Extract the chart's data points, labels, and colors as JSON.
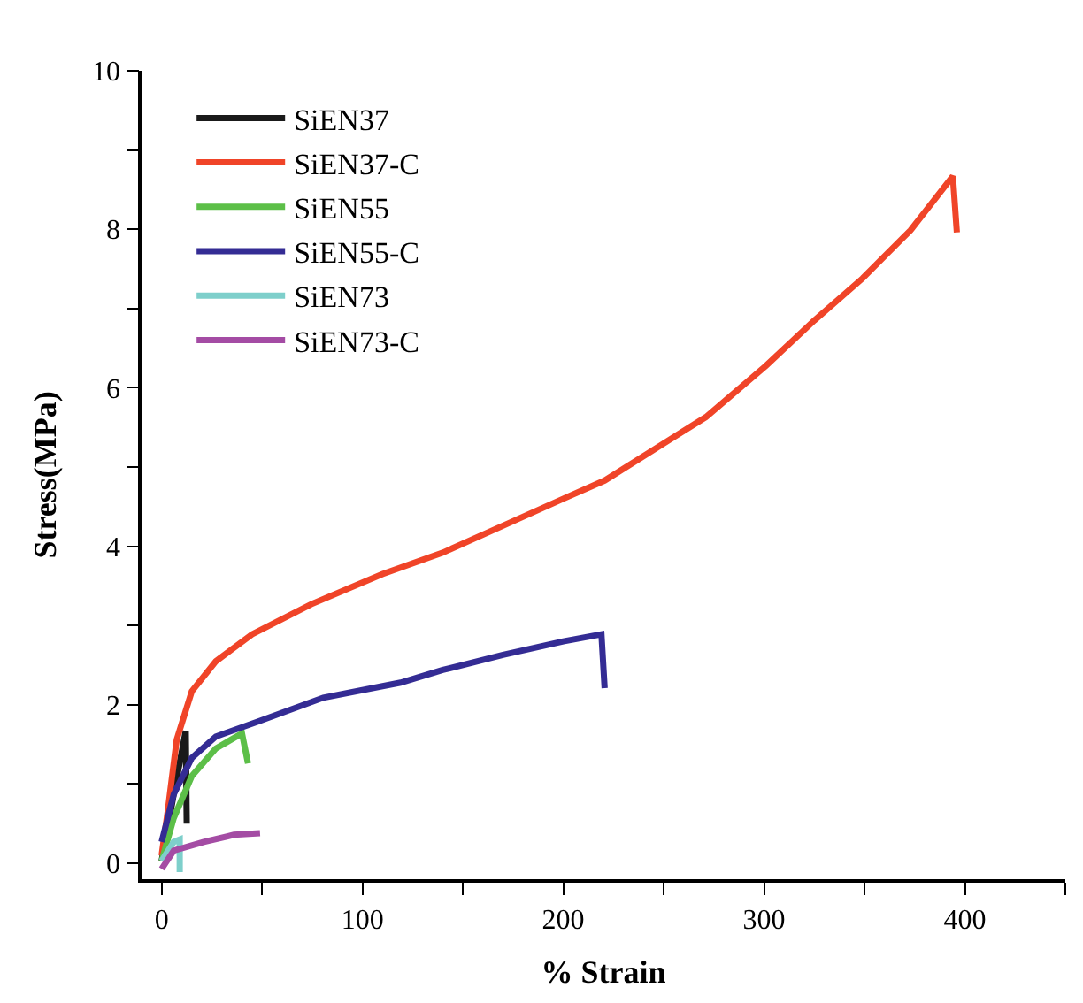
{
  "chart_data": {
    "type": "line",
    "xlabel": "% Strain",
    "ylabel": "Stress(MPa)",
    "xlim": [
      -10,
      450
    ],
    "ylim": [
      -0.2,
      10
    ],
    "xticks": [
      0,
      {
        "value": 50,
        "label": null
      },
      100,
      {
        "value": 150,
        "label": null
      },
      200,
      {
        "value": 250,
        "label": null
      },
      300,
      {
        "value": 350,
        "label": null
      },
      400,
      {
        "value": 450,
        "label": null
      }
    ],
    "yticks": [
      0,
      {
        "value": 1,
        "label": null
      },
      2,
      {
        "value": 3,
        "label": null
      },
      4,
      {
        "value": 5,
        "label": null
      },
      6,
      {
        "value": 7,
        "label": null
      },
      8,
      {
        "value": 9,
        "label": null
      },
      10
    ],
    "legend": "top left",
    "marker": "none",
    "line_style": "solid",
    "series": [
      {
        "name": "SiEN37",
        "color": "#1a1a1a",
        "x": [
          0,
          6,
          12,
          12.5
        ],
        "values": [
          0.03,
          0.87,
          1.67,
          0.5
        ]
      },
      {
        "name": "SiEN37-C",
        "color": "#f04428",
        "x": [
          0,
          3,
          7.5,
          15,
          27,
          45,
          74.5,
          110,
          140,
          170,
          200,
          220.6,
          244.5,
          271,
          301,
          325,
          349,
          373,
          394,
          396
        ],
        "values": [
          0.1,
          0.65,
          1.56,
          2.17,
          2.55,
          2.89,
          3.27,
          3.65,
          3.92,
          4.26,
          4.6,
          4.83,
          5.21,
          5.63,
          6.28,
          6.85,
          7.38,
          7.99,
          8.67,
          7.96
        ]
      },
      {
        "name": "SiEN55",
        "color": "#5cbf48",
        "x": [
          0,
          6,
          15,
          27,
          40,
          43
        ],
        "values": [
          0.03,
          0.57,
          1.1,
          1.45,
          1.64,
          1.26
        ]
      },
      {
        "name": "SiEN55-C",
        "color": "#342c94",
        "x": [
          0,
          6,
          15,
          27,
          48,
          80.5,
          119,
          140,
          170,
          200,
          219,
          220.6
        ],
        "values": [
          0.27,
          0.87,
          1.33,
          1.6,
          1.79,
          2.09,
          2.28,
          2.44,
          2.63,
          2.8,
          2.89,
          2.21
        ]
      },
      {
        "name": "SiEN73",
        "color": "#7ecfcb",
        "x": [
          0,
          6,
          9,
          9
        ],
        "values": [
          0.03,
          0.27,
          0.3,
          -0.11
        ]
      },
      {
        "name": "SiEN73-C",
        "color": "#a44ca4",
        "x": [
          0,
          6,
          21,
          36,
          49
        ],
        "values": [
          -0.07,
          0.16,
          0.27,
          0.36,
          0.38
        ]
      }
    ]
  }
}
